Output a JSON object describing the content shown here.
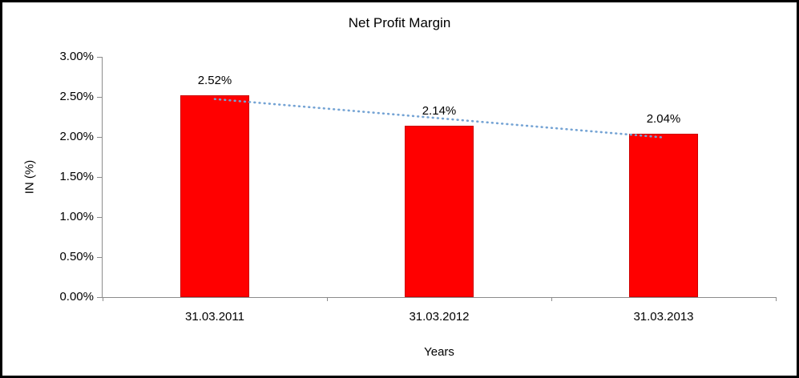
{
  "chart_data": {
    "type": "bar",
    "title": "Net Profit Margin",
    "categories": [
      "31.03.2011",
      "31.03.2012",
      "31.03.2013"
    ],
    "values": [
      2.52,
      2.14,
      2.04
    ],
    "data_labels": [
      "2.52%",
      "2.14%",
      "2.04%"
    ],
    "xlabel": "Years",
    "ylabel": "IN (%)",
    "ylim": [
      0,
      3.0
    ],
    "ytick_step": 0.5,
    "ytick_labels": [
      "0.00%",
      "0.50%",
      "1.00%",
      "1.50%",
      "2.00%",
      "2.50%",
      "3.00%"
    ],
    "bar_color": "#ff0000",
    "axis_color": "#8c8c8c",
    "grid": false,
    "legend": false,
    "trendline": {
      "type": "linear",
      "color": "#74a3d4",
      "style": "dotted"
    }
  }
}
